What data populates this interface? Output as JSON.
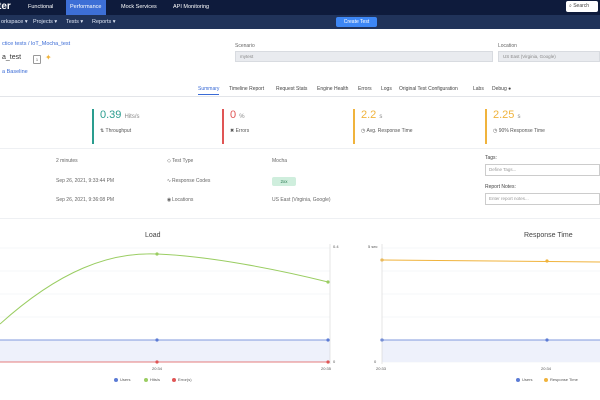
{
  "topnav": {
    "brand": "ter",
    "tabs": [
      "Functional",
      "Performance",
      "Mock Services",
      "API Monitoring"
    ],
    "search_placeholder": "Search"
  },
  "subnav": {
    "items": [
      "orkspace ▾",
      "Projects ▾",
      "Tests ▾",
      "Reports ▾"
    ],
    "create_label": "Create Test"
  },
  "header": {
    "breadcrumb": "ctice tests / loT_Mocha_test",
    "test_name": "a_test",
    "small_box": "1",
    "baseline_link": "a Baseline"
  },
  "scenario": {
    "label": "Scenario",
    "value": "mytest"
  },
  "location": {
    "label": "Location",
    "value": "US East (Virginia, Google)"
  },
  "tabs": [
    "Summary",
    "Timeline Report",
    "Request Stats",
    "Engine Health",
    "Errors",
    "Logs",
    "Original Test Configuration",
    "Labs",
    "Debug"
  ],
  "kpis": [
    {
      "value": "0.39",
      "unit": "Hits/s",
      "label": "Throughput",
      "color": "#2a9d8f"
    },
    {
      "value": "0",
      "unit": "%",
      "label": "Errors",
      "color": "#e05555"
    },
    {
      "value": "2.2",
      "unit": "s",
      "label": "Avg. Response Time",
      "color": "#f0b33c"
    },
    {
      "value": "2.25",
      "unit": "s",
      "label": "90% Response Time",
      "color": "#f0b33c"
    }
  ],
  "details": {
    "duration": "2 minutes",
    "start": "Sep 26, 2021, 9:33:44 PM",
    "end": "Sep 26, 2021, 9:36:08 PM",
    "test_type_label": "Test Type",
    "test_type": "Mocha",
    "response_codes_label": "Response Codes",
    "response_code": "2xx",
    "locations_label": "Locations",
    "locations": "US East (Virginia, Google)"
  },
  "tags": {
    "label": "Tags:",
    "placeholder": "Define Tags..."
  },
  "report_notes": {
    "label": "Report Notes:",
    "placeholder": "Enter report notes..."
  },
  "load_chart": {
    "title": "Load",
    "right_ticks": [
      "0.4",
      "0"
    ],
    "x_ticks": [
      "20:34",
      "20:35"
    ],
    "legend": [
      "Users",
      "Hits/s",
      "Error(s)"
    ]
  },
  "response_chart": {
    "title": "Response Time",
    "left_ticks": [
      "5 sec",
      "0"
    ],
    "x_ticks": [
      "20:33",
      "20:34"
    ],
    "legend": [
      "Users",
      "Response Time"
    ]
  },
  "colors": {
    "users": "#5b7bd5",
    "hits": "#9acd62",
    "errors": "#e05555",
    "response": "#f0b33c"
  },
  "chart_data": [
    {
      "type": "line",
      "title": "Load",
      "x": [
        "20:34",
        "20:35"
      ],
      "series": [
        {
          "name": "Users",
          "values": [
            0,
            0
          ]
        },
        {
          "name": "Hits/s",
          "values": [
            0.39,
            0.29
          ]
        },
        {
          "name": "Error(s)",
          "values": [
            0,
            0
          ]
        }
      ],
      "ylim": [
        0,
        0.4
      ]
    },
    {
      "type": "line",
      "title": "Response Time",
      "x": [
        "20:33",
        "20:34"
      ],
      "series": [
        {
          "name": "Users",
          "values": [
            0,
            0
          ]
        },
        {
          "name": "Response Time",
          "values": [
            4.6,
            4.6
          ]
        }
      ],
      "ylim": [
        0,
        5
      ]
    }
  ]
}
